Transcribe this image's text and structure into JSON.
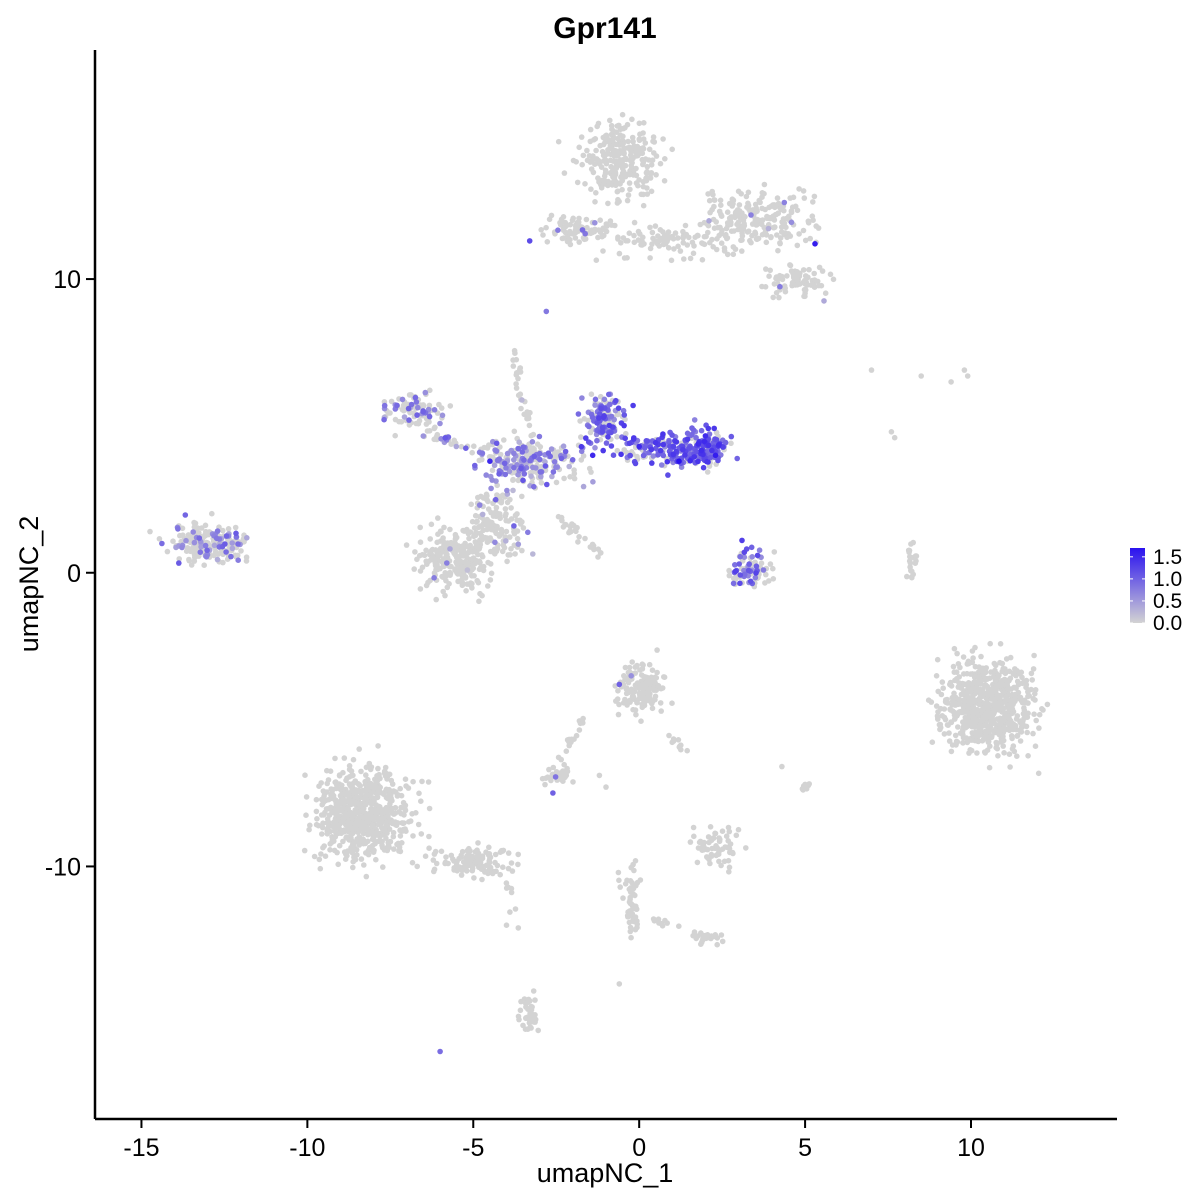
{
  "chart_data": {
    "type": "scatter",
    "title": "Gpr141",
    "xlabel": "umapNC_1",
    "ylabel": "umapNC_2",
    "xlim": [
      -16.4,
      14.4
    ],
    "ylim": [
      -18.6,
      17.8
    ],
    "x_ticks": [
      -15,
      -10,
      -5,
      0,
      5,
      10
    ],
    "x_tick_labels": [
      "-15",
      "-10",
      "-5",
      "0",
      "5",
      "10"
    ],
    "y_ticks": [
      -10,
      0,
      10
    ],
    "y_tick_labels": [
      "-10",
      "0",
      "10"
    ],
    "grid": false,
    "color_scale": {
      "low_color": "#d3d3d3",
      "high_color": "#2a12ef",
      "min": 0,
      "max": 1.7,
      "legend_ticks": [
        0.0,
        0.5,
        1.0,
        1.5
      ],
      "legend_tick_labels": [
        "0.0",
        "0.5",
        "1.0",
        "1.5"
      ],
      "legend_position": "right"
    },
    "clusters": [
      {
        "center": [
          -0.5,
          14.0
        ],
        "spread": [
          1.1,
          1.2
        ],
        "count": 260,
        "expression_fraction": 0.01,
        "expression_mean": 0.3
      },
      {
        "center": [
          3.5,
          12.0
        ],
        "spread": [
          1.5,
          0.9
        ],
        "count": 220,
        "expression_fraction": 0.02,
        "expression_mean": 0.6
      },
      {
        "center": [
          4.8,
          9.9
        ],
        "spread": [
          0.9,
          0.6
        ],
        "count": 80,
        "expression_fraction": 0.02,
        "expression_mean": 0.4
      },
      {
        "center": [
          -1.8,
          11.7
        ],
        "spread": [
          1.0,
          0.4
        ],
        "count": 80,
        "expression_fraction": 0.03,
        "expression_mean": 0.8
      },
      {
        "center": [
          1.0,
          11.3
        ],
        "spread": [
          1.6,
          0.5
        ],
        "count": 90,
        "expression_fraction": 0.0,
        "expression_mean": 0.0
      },
      {
        "center": [
          -1.0,
          5.2
        ],
        "spread": [
          0.6,
          0.8
        ],
        "count": 130,
        "expression_fraction": 0.75,
        "expression_mean": 0.95
      },
      {
        "center": [
          1.0,
          4.2
        ],
        "spread": [
          1.4,
          0.5
        ],
        "count": 180,
        "expression_fraction": 0.7,
        "expression_mean": 1.0
      },
      {
        "center": [
          2.0,
          4.3
        ],
        "spread": [
          0.5,
          0.6
        ],
        "count": 100,
        "expression_fraction": 0.8,
        "expression_mean": 1.1
      },
      {
        "center": [
          -3.2,
          3.8
        ],
        "spread": [
          1.5,
          0.7
        ],
        "count": 220,
        "expression_fraction": 0.45,
        "expression_mean": 0.7
      },
      {
        "center": [
          -6.8,
          5.5
        ],
        "spread": [
          0.7,
          0.6
        ],
        "count": 90,
        "expression_fraction": 0.3,
        "expression_mean": 0.6
      },
      {
        "center": [
          -5.5,
          0.5
        ],
        "spread": [
          1.0,
          1.0
        ],
        "count": 260,
        "expression_fraction": 0.03,
        "expression_mean": 0.5
      },
      {
        "center": [
          -4.2,
          1.8
        ],
        "spread": [
          0.8,
          1.2
        ],
        "count": 140,
        "expression_fraction": 0.12,
        "expression_mean": 0.6
      },
      {
        "center": [
          -13.0,
          1.0
        ],
        "spread": [
          1.1,
          0.6
        ],
        "count": 200,
        "expression_fraction": 0.25,
        "expression_mean": 0.7
      },
      {
        "center": [
          3.3,
          0.2
        ],
        "spread": [
          0.6,
          0.6
        ],
        "count": 75,
        "expression_fraction": 0.45,
        "expression_mean": 0.9
      },
      {
        "center": [
          8.2,
          0.4
        ],
        "spread": [
          0.2,
          0.5
        ],
        "count": 22,
        "expression_fraction": 0.0,
        "expression_mean": 0.0
      },
      {
        "center": [
          10.5,
          -4.5
        ],
        "spread": [
          1.2,
          1.4
        ],
        "count": 700,
        "expression_fraction": 0.0,
        "expression_mean": 0.0
      },
      {
        "center": [
          -8.3,
          -8.2
        ],
        "spread": [
          1.3,
          1.4
        ],
        "count": 650,
        "expression_fraction": 0.0,
        "expression_mean": 0.0
      },
      {
        "center": [
          -5.0,
          -9.8
        ],
        "spread": [
          1.1,
          0.5
        ],
        "count": 120,
        "expression_fraction": 0.0,
        "expression_mean": 0.0
      },
      {
        "center": [
          0.0,
          -3.9
        ],
        "spread": [
          0.6,
          0.8
        ],
        "count": 150,
        "expression_fraction": 0.01,
        "expression_mean": 0.4
      },
      {
        "center": [
          -2.4,
          -6.9
        ],
        "spread": [
          0.4,
          0.3
        ],
        "count": 40,
        "expression_fraction": 0.05,
        "expression_mean": 0.6
      },
      {
        "center": [
          2.3,
          -9.3
        ],
        "spread": [
          0.6,
          0.6
        ],
        "count": 60,
        "expression_fraction": 0.0,
        "expression_mean": 0.0
      },
      {
        "center": [
          -3.3,
          -15.0
        ],
        "spread": [
          0.3,
          0.7
        ],
        "count": 40,
        "expression_fraction": 0.0,
        "expression_mean": 0.0
      },
      {
        "center": [
          -0.2,
          -11.0
        ],
        "spread": [
          0.2,
          1.2
        ],
        "count": 35,
        "expression_fraction": 0.0,
        "expression_mean": 0.0
      },
      {
        "center": [
          2.1,
          -12.4
        ],
        "spread": [
          0.4,
          0.2
        ],
        "count": 20,
        "expression_fraction": 0.0,
        "expression_mean": 0.0
      },
      {
        "center": [
          5.0,
          -7.3
        ],
        "spread": [
          0.1,
          0.2
        ],
        "count": 10,
        "expression_fraction": 0.0,
        "expression_mean": 0.0
      }
    ],
    "paths": [
      {
        "from": [
          -3.8,
          7.5
        ],
        "to": [
          -3.0,
          3.0
        ],
        "count": 40,
        "expression_fraction": 0.1,
        "expression_mean": 0.6
      },
      {
        "from": [
          -2.5,
          2.0
        ],
        "to": [
          -1.2,
          0.6
        ],
        "count": 30,
        "expression_fraction": 0.0,
        "expression_mean": 0.0
      },
      {
        "from": [
          -6.5,
          4.8
        ],
        "to": [
          -4.0,
          3.8
        ],
        "count": 40,
        "expression_fraction": 0.35,
        "expression_mean": 0.7
      },
      {
        "from": [
          -1.5,
          -4.5
        ],
        "to": [
          -2.4,
          -6.5
        ],
        "count": 18,
        "expression_fraction": 0.0,
        "expression_mean": 0.0
      },
      {
        "from": [
          -4.0,
          -10.3
        ],
        "to": [
          -3.7,
          -12.4
        ],
        "count": 8,
        "expression_fraction": 0.0,
        "expression_mean": 0.0
      },
      {
        "from": [
          -0.6,
          -10.2
        ],
        "to": [
          -0.1,
          -12.2
        ],
        "count": 20,
        "expression_fraction": 0.0,
        "expression_mean": 0.0
      },
      {
        "from": [
          0.5,
          -11.9
        ],
        "to": [
          2.0,
          -12.4
        ],
        "count": 15,
        "expression_fraction": 0.0,
        "expression_mean": 0.0
      },
      {
        "from": [
          0.8,
          -5.4
        ],
        "to": [
          1.4,
          -6.0
        ],
        "count": 10,
        "expression_fraction": 0.0,
        "expression_mean": 0.0
      }
    ],
    "highlight_points": [
      {
        "x": 1.2,
        "y": 3.8,
        "value": 1.7
      },
      {
        "x": 2.3,
        "y": 4.0,
        "value": 1.6
      },
      {
        "x": 0.0,
        "y": 4.3,
        "value": 1.5
      },
      {
        "x": -1.4,
        "y": 4.0,
        "value": 1.5
      },
      {
        "x": -4.5,
        "y": 3.8,
        "value": 1.5
      },
      {
        "x": 5.3,
        "y": 11.2,
        "value": 1.6
      },
      {
        "x": -3.3,
        "y": 11.3,
        "value": 1.2
      },
      {
        "x": -6.0,
        "y": -16.3,
        "value": 0.9
      },
      {
        "x": -2.6,
        "y": -7.5,
        "value": 1.0
      },
      {
        "x": -0.6,
        "y": -3.8,
        "value": 1.0
      },
      {
        "x": -2.8,
        "y": 8.9,
        "value": 0.8
      },
      {
        "x": 3.1,
        "y": 1.1,
        "value": 1.3
      }
    ],
    "outlier_points": [
      {
        "x": 7.0,
        "y": 6.9
      },
      {
        "x": 7.6,
        "y": 4.8
      },
      {
        "x": 7.7,
        "y": 4.6
      },
      {
        "x": 8.5,
        "y": 6.7
      },
      {
        "x": 9.4,
        "y": 6.5
      },
      {
        "x": 9.8,
        "y": 6.9
      },
      {
        "x": 9.9,
        "y": 6.7
      },
      {
        "x": -0.6,
        "y": -14.0
      },
      {
        "x": 4.3,
        "y": -6.6
      },
      {
        "x": -1.2,
        "y": -6.9
      },
      {
        "x": -1.0,
        "y": -7.3
      },
      {
        "x": -4.0,
        "y": -12.0
      }
    ]
  }
}
